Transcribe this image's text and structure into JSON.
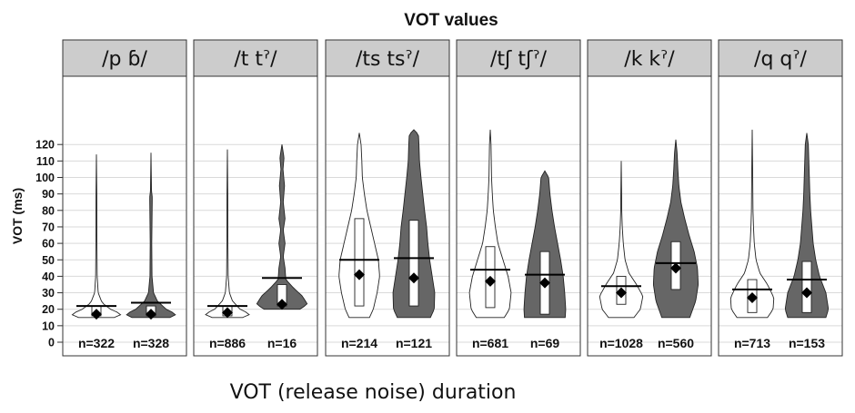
{
  "chart_data": {
    "type": "violin",
    "title": "VOT values",
    "ylabel": "VOT (ms)",
    "ylim": [
      0,
      130
    ],
    "yticks": [
      0,
      10,
      20,
      30,
      40,
      50,
      60,
      70,
      80,
      90,
      100,
      110,
      120
    ],
    "grid": true,
    "fill_colors": {
      "plain": "#ffffff",
      "ejective": "#666666"
    },
    "panels": [
      {
        "label": "/p ɓ/",
        "violins": [
          {
            "n_label": "n=322",
            "fill": "plain",
            "range": [
              15,
              114
            ],
            "q1": 16,
            "q3": 22,
            "median": 17,
            "mean": 22,
            "density": [
              [
                15,
                0.7
              ],
              [
                17,
                1
              ],
              [
                20,
                0.55
              ],
              [
                24,
                0.22
              ],
              [
                30,
                0.07
              ],
              [
                40,
                0.03
              ],
              [
                60,
                0.02
              ],
              [
                90,
                0.015
              ],
              [
                114,
                0
              ]
            ]
          },
          {
            "n_label": "n=328",
            "fill": "ejective",
            "range": [
              15,
              115
            ],
            "q1": 16,
            "q3": 22,
            "median": 17,
            "mean": 24,
            "density": [
              [
                15,
                0.75
              ],
              [
                17,
                1
              ],
              [
                20,
                0.6
              ],
              [
                25,
                0.25
              ],
              [
                30,
                0.1
              ],
              [
                40,
                0.04
              ],
              [
                60,
                0.03
              ],
              [
                88,
                0.05
              ],
              [
                92,
                0.02
              ],
              [
                115,
                0
              ]
            ]
          }
        ]
      },
      {
        "label": "/t tˀ/",
        "violins": [
          {
            "n_label": "n=886",
            "fill": "plain",
            "range": [
              15,
              117
            ],
            "q1": 16,
            "q3": 22,
            "median": 18,
            "mean": 22,
            "density": [
              [
                15,
                0.6
              ],
              [
                17,
                0.9
              ],
              [
                20,
                0.5
              ],
              [
                25,
                0.2
              ],
              [
                30,
                0.08
              ],
              [
                40,
                0.03
              ],
              [
                60,
                0.02
              ],
              [
                90,
                0.015
              ],
              [
                117,
                0
              ]
            ]
          },
          {
            "n_label": "n=16",
            "fill": "ejective",
            "range": [
              20,
              120
            ],
            "q1": 22,
            "q3": 35,
            "median": 23,
            "mean": 39,
            "density": [
              [
                20,
                0.7
              ],
              [
                23,
                1
              ],
              [
                28,
                0.8
              ],
              [
                33,
                0.45
              ],
              [
                38,
                0.15
              ],
              [
                45,
                0.12
              ],
              [
                52,
                0.05
              ],
              [
                60,
                0.12
              ],
              [
                68,
                0.05
              ],
              [
                75,
                0.12
              ],
              [
                85,
                0.05
              ],
              [
                95,
                0.1
              ],
              [
                105,
                0.04
              ],
              [
                112,
                0.08
              ],
              [
                120,
                0
              ]
            ]
          }
        ]
      },
      {
        "label": "/ts tsˀ/",
        "violins": [
          {
            "n_label": "n=214",
            "fill": "plain",
            "range": [
              15,
              127
            ],
            "q1": 22,
            "q3": 75,
            "median": 41,
            "mean": 50,
            "density": [
              [
                15,
                0.4
              ],
              [
                20,
                0.55
              ],
              [
                30,
                0.7
              ],
              [
                40,
                0.8
              ],
              [
                50,
                0.75
              ],
              [
                60,
                0.6
              ],
              [
                70,
                0.45
              ],
              [
                80,
                0.3
              ],
              [
                90,
                0.2
              ],
              [
                100,
                0.12
              ],
              [
                110,
                0.1
              ],
              [
                120,
                0.07
              ],
              [
                127,
                0
              ]
            ]
          },
          {
            "n_label": "n=121",
            "fill": "ejective",
            "range": [
              15,
              129
            ],
            "q1": 22,
            "q3": 74,
            "median": 39,
            "mean": 51,
            "density": [
              [
                15,
                0.65
              ],
              [
                20,
                0.8
              ],
              [
                30,
                0.82
              ],
              [
                40,
                0.72
              ],
              [
                50,
                0.62
              ],
              [
                60,
                0.55
              ],
              [
                70,
                0.5
              ],
              [
                80,
                0.42
              ],
              [
                90,
                0.35
              ],
              [
                100,
                0.28
              ],
              [
                110,
                0.22
              ],
              [
                120,
                0.2
              ],
              [
                126,
                0.18
              ],
              [
                129,
                0
              ]
            ]
          }
        ]
      },
      {
        "label": "/tʃ tʃˀ/",
        "violins": [
          {
            "n_label": "n=681",
            "fill": "plain",
            "range": [
              15,
              129
            ],
            "q1": 21,
            "q3": 58,
            "median": 37,
            "mean": 44,
            "density": [
              [
                15,
                0.55
              ],
              [
                20,
                0.75
              ],
              [
                30,
                0.82
              ],
              [
                40,
                0.7
              ],
              [
                50,
                0.5
              ],
              [
                60,
                0.3
              ],
              [
                70,
                0.2
              ],
              [
                80,
                0.12
              ],
              [
                90,
                0.08
              ],
              [
                100,
                0.05
              ],
              [
                110,
                0.04
              ],
              [
                120,
                0.03
              ],
              [
                129,
                0
              ]
            ]
          },
          {
            "n_label": "n=69",
            "fill": "ejective",
            "range": [
              15,
              104
            ],
            "q1": 17,
            "q3": 55,
            "median": 36,
            "mean": 41,
            "density": [
              [
                15,
                0.8
              ],
              [
                20,
                0.82
              ],
              [
                30,
                0.78
              ],
              [
                40,
                0.72
              ],
              [
                50,
                0.62
              ],
              [
                60,
                0.5
              ],
              [
                70,
                0.38
              ],
              [
                80,
                0.28
              ],
              [
                90,
                0.2
              ],
              [
                100,
                0.15
              ],
              [
                104,
                0
              ]
            ]
          }
        ]
      },
      {
        "label": "/k kˀ/",
        "violins": [
          {
            "n_label": "n=1028",
            "fill": "plain",
            "range": [
              15,
              110
            ],
            "q1": 23,
            "q3": 40,
            "median": 30,
            "mean": 34,
            "density": [
              [
                15,
                0.5
              ],
              [
                20,
                0.75
              ],
              [
                28,
                0.85
              ],
              [
                35,
                0.6
              ],
              [
                42,
                0.3
              ],
              [
                50,
                0.15
              ],
              [
                60,
                0.08
              ],
              [
                70,
                0.04
              ],
              [
                80,
                0.02
              ],
              [
                90,
                0.015
              ],
              [
                110,
                0
              ]
            ]
          },
          {
            "n_label": "n=560",
            "fill": "ejective",
            "range": [
              15,
              123
            ],
            "q1": 32,
            "q3": 61,
            "median": 45,
            "mean": 48,
            "density": [
              [
                15,
                0.55
              ],
              [
                25,
                0.78
              ],
              [
                35,
                0.88
              ],
              [
                45,
                0.85
              ],
              [
                55,
                0.72
              ],
              [
                65,
                0.52
              ],
              [
                75,
                0.35
              ],
              [
                85,
                0.2
              ],
              [
                95,
                0.12
              ],
              [
                105,
                0.08
              ],
              [
                115,
                0.05
              ],
              [
                123,
                0
              ]
            ]
          }
        ]
      },
      {
        "label": "/q qˀ/",
        "violins": [
          {
            "n_label": "n=713",
            "fill": "plain",
            "range": [
              15,
              129
            ],
            "q1": 18,
            "q3": 38,
            "median": 27,
            "mean": 32,
            "density": [
              [
                15,
                0.6
              ],
              [
                20,
                0.82
              ],
              [
                27,
                0.85
              ],
              [
                35,
                0.6
              ],
              [
                42,
                0.3
              ],
              [
                50,
                0.15
              ],
              [
                60,
                0.08
              ],
              [
                70,
                0.05
              ],
              [
                80,
                0.03
              ],
              [
                100,
                0.02
              ],
              [
                129,
                0
              ]
            ]
          },
          {
            "n_label": "n=153",
            "fill": "ejective",
            "range": [
              15,
              127
            ],
            "q1": 18,
            "q3": 49,
            "median": 30,
            "mean": 38,
            "density": [
              [
                15,
                0.75
              ],
              [
                20,
                0.85
              ],
              [
                30,
                0.75
              ],
              [
                40,
                0.5
              ],
              [
                50,
                0.35
              ],
              [
                60,
                0.25
              ],
              [
                70,
                0.2
              ],
              [
                80,
                0.15
              ],
              [
                90,
                0.12
              ],
              [
                100,
                0.1
              ],
              [
                110,
                0.08
              ],
              [
                120,
                0.06
              ],
              [
                127,
                0
              ]
            ]
          }
        ]
      }
    ]
  },
  "caption": "VOT (release noise) duration"
}
